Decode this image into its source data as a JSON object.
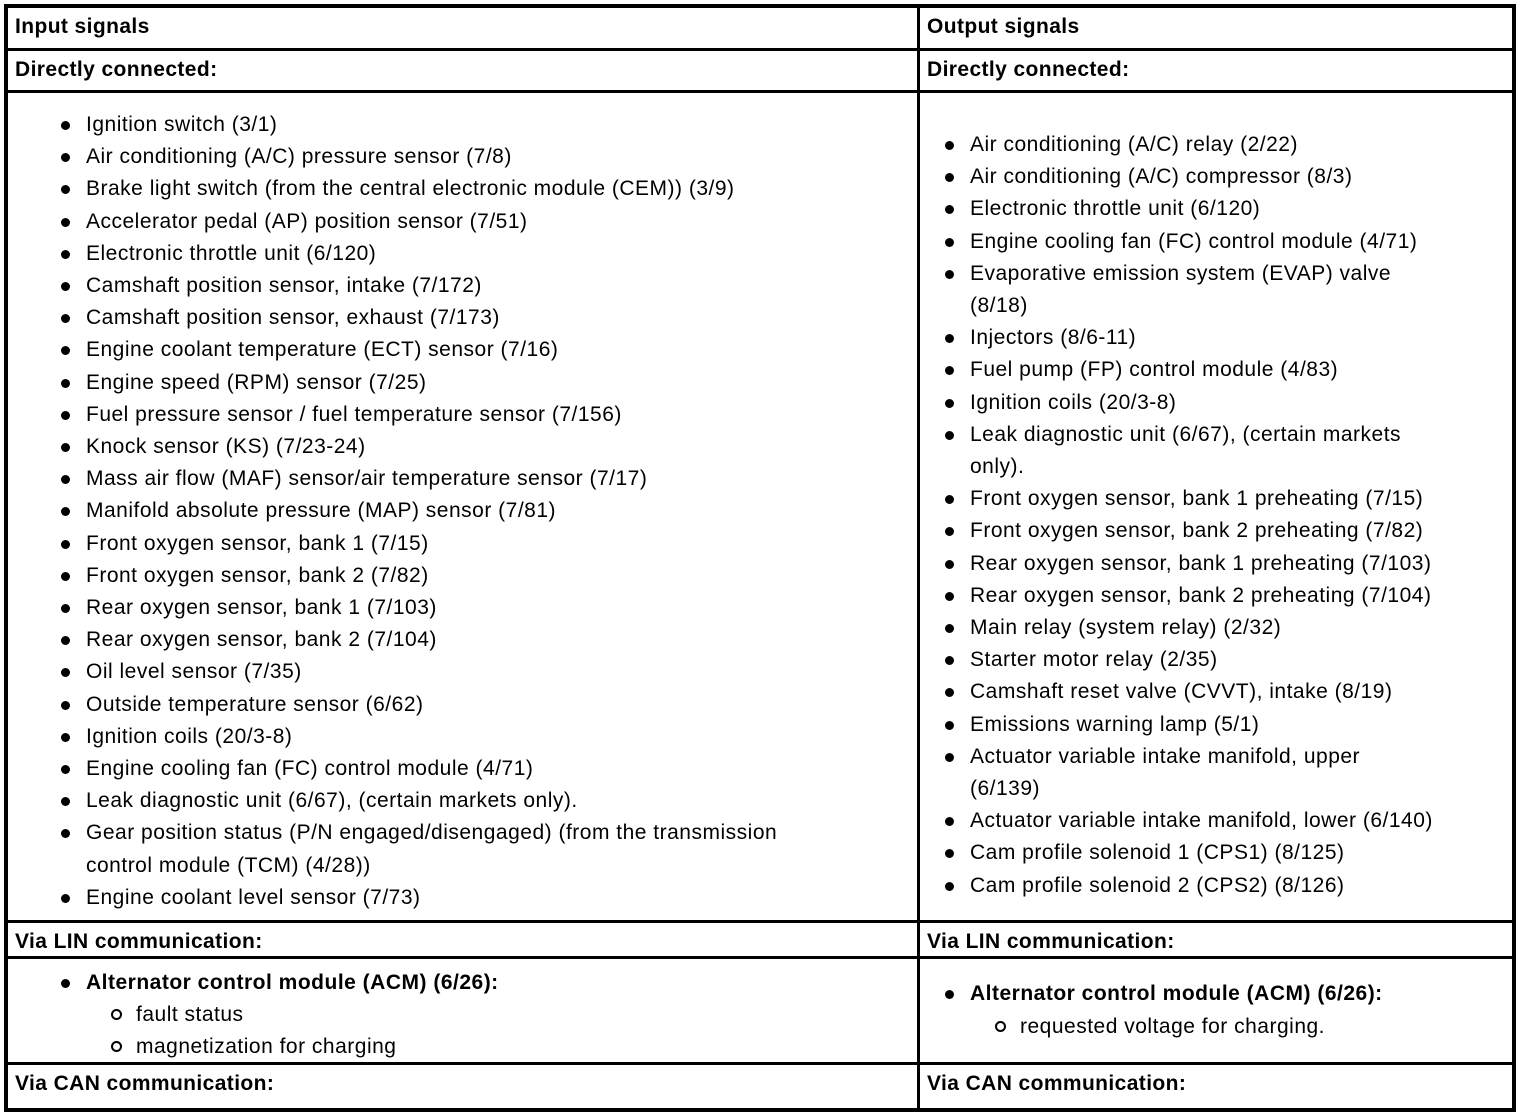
{
  "colors": {
    "border": "#000000",
    "background": "#ffffff",
    "text": "#000000"
  },
  "columns": [
    {
      "header": "Input signals",
      "directly_connected": {
        "label": "Directly connected:",
        "items": [
          "Ignition switch (3/1)",
          "Air conditioning (A/C) pressure sensor (7/8)",
          "Brake light switch (from the central electronic module (CEM)) (3/9)",
          "Accelerator pedal (AP) position sensor (7/51)",
          "Electronic throttle unit (6/120)",
          "Camshaft position sensor, intake (7/172)",
          "Camshaft position sensor, exhaust (7/173)",
          "Engine coolant temperature (ECT) sensor (7/16)",
          "Engine speed (RPM) sensor (7/25)",
          "Fuel pressure sensor / fuel temperature sensor (7/156)",
          "Knock sensor (KS) (7/23-24)",
          "Mass air flow (MAF) sensor/air temperature sensor (7/17)",
          "Manifold absolute pressure (MAP) sensor (7/81)",
          "Front oxygen sensor, bank 1 (7/15)",
          "Front oxygen sensor, bank 2 (7/82)",
          "Rear oxygen sensor, bank 1 (7/103)",
          "Rear oxygen sensor, bank 2 (7/104)",
          "Oil level sensor (7/35)",
          "Outside temperature sensor (6/62)",
          "Ignition coils (20/3-8)",
          "Engine cooling fan (FC) control module (4/71)",
          "Leak diagnostic unit (6/67), (certain markets only).",
          "Gear position status (P/N engaged/disengaged) (from the transmission\ncontrol module (TCM) (4/28))",
          "Engine coolant level sensor (7/73)"
        ]
      },
      "via_lin": {
        "label": "Via LIN communication:",
        "items": [
          {
            "label": "Alternator control module (ACM) (6/26):",
            "sub": [
              "fault status",
              "magnetization for charging"
            ]
          }
        ]
      },
      "via_can": {
        "label": "Via CAN communication:"
      }
    },
    {
      "header": "Output signals",
      "directly_connected": {
        "label": "Directly connected:",
        "items": [
          "Air conditioning (A/C) relay (2/22)",
          "Air conditioning (A/C) compressor (8/3)",
          "Electronic throttle unit (6/120)",
          "Engine cooling fan (FC) control module (4/71)",
          "Evaporative emission system (EVAP) valve\n(8/18)",
          "Injectors (8/6-11)",
          "Fuel pump (FP) control module (4/83)",
          "Ignition coils (20/3-8)",
          "Leak diagnostic unit (6/67), (certain markets\nonly).",
          "Front oxygen sensor, bank 1 preheating (7/15)",
          "Front oxygen sensor, bank 2 preheating (7/82)",
          "Rear oxygen sensor, bank 1 preheating (7/103)",
          "Rear oxygen sensor, bank 2 preheating (7/104)",
          "Main relay (system relay) (2/32)",
          "Starter motor relay (2/35)",
          "Camshaft reset valve (CVVT), intake (8/19)",
          "Emissions warning lamp (5/1)",
          "Actuator variable intake manifold, upper\n(6/139)",
          "Actuator variable intake manifold, lower (6/140)",
          "Cam profile solenoid 1 (CPS1) (8/125)",
          "Cam profile solenoid 2 (CPS2) (8/126)"
        ]
      },
      "via_lin": {
        "label": "Via LIN communication:",
        "items": [
          {
            "label": "Alternator control module (ACM) (6/26):",
            "sub": [
              "requested voltage for charging."
            ]
          }
        ]
      },
      "via_can": {
        "label": "Via CAN communication:"
      }
    }
  ]
}
